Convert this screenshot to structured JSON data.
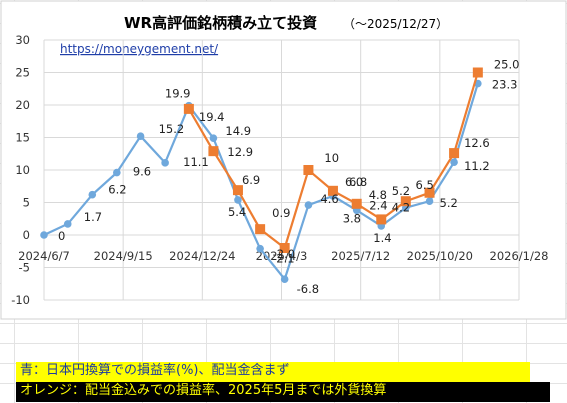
{
  "chart_data": {
    "type": "line",
    "title": "WR高評価銘柄積み立て投資",
    "subtitle": "（～2025/12/27）",
    "annotation_url": "https://moneygement.net/",
    "x_ticks": [
      "2024/6/7",
      "2024/9/15",
      "2024/12/24",
      "2025/4/3",
      "2025/7/12",
      "2025/10/20",
      "2026/1/28"
    ],
    "x_tick_dates": [
      "2024-06-07",
      "2024-09-15",
      "2024-12-24",
      "2025-04-03",
      "2025-07-12",
      "2025-10-20",
      "2026-01-28"
    ],
    "y_ticks": [
      "-10",
      "-5",
      "0",
      "5",
      "10",
      "15",
      "20",
      "25",
      "30"
    ],
    "ylim": [
      -10,
      30
    ],
    "xlim": [
      "2024-06-07",
      "2026-01-28"
    ],
    "grid": true,
    "series": [
      {
        "key": "blue",
        "color": "#6fa8dc",
        "marker": "circle",
        "points": [
          {
            "x": "2024-06-07",
            "y": 0,
            "label": "0"
          },
          {
            "x": "2024-07-07",
            "y": 1.7,
            "label": "1.7"
          },
          {
            "x": "2024-08-07",
            "y": 6.2,
            "label": "6.2"
          },
          {
            "x": "2024-09-07",
            "y": 9.6,
            "label": "9.6"
          },
          {
            "x": "2024-10-07",
            "y": 15.2,
            "label": "15.2"
          },
          {
            "x": "2024-11-07",
            "y": 11.1,
            "label": "11.1"
          },
          {
            "x": "2024-12-07",
            "y": 19.9,
            "label": "19.9"
          },
          {
            "x": "2025-01-07",
            "y": 14.9,
            "label": "14.9"
          },
          {
            "x": "2025-02-07",
            "y": 5.4,
            "label": "5.4"
          },
          {
            "x": "2025-03-07",
            "y": -2.1,
            "label": "-2.1"
          },
          {
            "x": "2025-04-07",
            "y": -6.8,
            "label": "-6.8"
          },
          {
            "x": "2025-05-07",
            "y": 4.6,
            "label": "4.6"
          },
          {
            "x": "2025-06-07",
            "y": 6.0,
            "label": "6.0"
          },
          {
            "x": "2025-07-07",
            "y": 3.8,
            "label": "3.8"
          },
          {
            "x": "2025-08-07",
            "y": 1.4,
            "label": "1.4"
          },
          {
            "x": "2025-09-07",
            "y": 4.2,
            "label": "4.2"
          },
          {
            "x": "2025-10-07",
            "y": 5.2,
            "label": "5.2"
          },
          {
            "x": "2025-11-07",
            "y": 11.2,
            "label": "11.2"
          },
          {
            "x": "2025-12-07",
            "y": 23.3,
            "label": "23.3"
          }
        ]
      },
      {
        "key": "orange",
        "color": "#ed7d31",
        "marker": "square",
        "points": [
          {
            "x": "2024-12-07",
            "y": 19.4,
            "label": "19.4"
          },
          {
            "x": "2025-01-07",
            "y": 12.9,
            "label": "12.9"
          },
          {
            "x": "2025-02-07",
            "y": 6.9,
            "label": "6.9"
          },
          {
            "x": "2025-03-07",
            "y": 0.9,
            "label": "0.9"
          },
          {
            "x": "2025-04-07",
            "y": -2.0,
            "label": "-2.0"
          },
          {
            "x": "2025-05-07",
            "y": 10,
            "label": "10"
          },
          {
            "x": "2025-06-07",
            "y": 6.8,
            "label": "6.8"
          },
          {
            "x": "2025-07-07",
            "y": 4.8,
            "label": "4.8"
          },
          {
            "x": "2025-08-07",
            "y": 2.4,
            "label": "2.4"
          },
          {
            "x": "2025-09-07",
            "y": 5.2,
            "label": "5.2"
          },
          {
            "x": "2025-10-07",
            "y": 6.5,
            "label": "6.5"
          },
          {
            "x": "2025-11-07",
            "y": 12.6,
            "label": "12.6"
          },
          {
            "x": "2025-12-07",
            "y": 25.0,
            "label": "25.0"
          }
        ]
      }
    ]
  },
  "legend_notes": {
    "blue_note": "青：日本円換算での損益率(%)、配当金含まず",
    "orange_note": "オレンジ：配当金込みでの損益率、2025年5月までは外貨換算"
  },
  "colors": {
    "blue_line": "#6fa8dc",
    "orange_line": "#ed7d31",
    "note_blue_bg": "#ffff00",
    "note_blue_text": "#1b3aa0",
    "note_orange_bg": "#000000",
    "note_orange_text": "#ffff00"
  }
}
